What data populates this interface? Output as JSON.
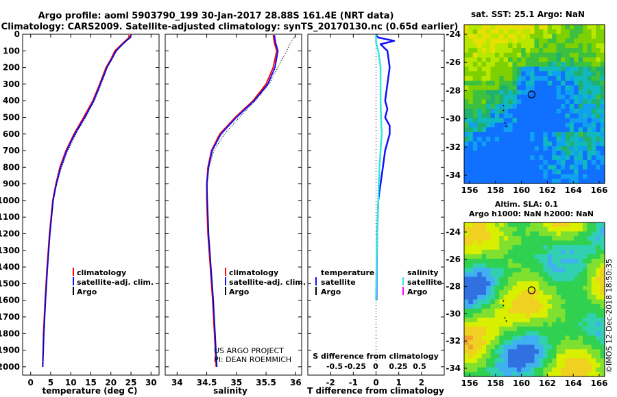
{
  "title": {
    "line1": "Argo profile: aoml 5903790_199 30-Jan-2017 28.88S 161.4E (NRT data)",
    "line2": "Climatology: CARS2009. Satellite-adjusted climatology: synTS_20170130.nc (0.65d earlier)"
  },
  "credit": {
    "project": "US ARGO PROJECT",
    "pi": "PI: DEAN ROEMMICH",
    "imos": "©IMOS 12-Dec-2018 18:50:35"
  },
  "colors": {
    "climatology": "#ff0000",
    "satellite_clim": "#1010ff",
    "argo": "#000000",
    "salinity_satellite": "#33e6e6",
    "salinity_argo": "#ff00ff"
  },
  "chart_data": [
    {
      "type": "line",
      "name": "temperature",
      "xlabel": "temperature (deg C)",
      "ylabel": "",
      "xlim": [
        -2,
        32
      ],
      "ylim": [
        0,
        2050
      ],
      "xticks": [
        0,
        5,
        10,
        15,
        20,
        25,
        30
      ],
      "yticks": [
        0,
        100,
        200,
        300,
        400,
        500,
        600,
        700,
        800,
        900,
        1000,
        1100,
        1200,
        1300,
        1400,
        1500,
        1600,
        1700,
        1800,
        1900,
        2000
      ],
      "legend": {
        "position": "bottom-right",
        "items": [
          "climatology",
          "satellite-adj. clim.",
          "Argo"
        ]
      },
      "series": [
        {
          "name": "climatology",
          "color": "#ff0000",
          "points": [
            [
              24.5,
              5
            ],
            [
              24.5,
              20
            ],
            [
              23.6,
              40
            ],
            [
              22.3,
              70
            ],
            [
              21.0,
              100
            ],
            [
              20.0,
              150
            ],
            [
              18.8,
              200
            ],
            [
              17.2,
              300
            ],
            [
              15.5,
              400
            ],
            [
              13.2,
              500
            ],
            [
              10.8,
              600
            ],
            [
              8.8,
              700
            ],
            [
              7.3,
              800
            ],
            [
              6.3,
              900
            ],
            [
              5.5,
              1000
            ],
            [
              4.7,
              1200
            ],
            [
              4.1,
              1400
            ],
            [
              3.6,
              1600
            ],
            [
              3.2,
              1800
            ],
            [
              3.0,
              2000
            ]
          ]
        },
        {
          "name": "satellite-adj. clim.",
          "color": "#1010ff",
          "points": [
            [
              25.0,
              5
            ],
            [
              24.8,
              20
            ],
            [
              23.8,
              40
            ],
            [
              22.5,
              70
            ],
            [
              21.3,
              100
            ],
            [
              20.2,
              150
            ],
            [
              19.0,
              200
            ],
            [
              17.4,
              300
            ],
            [
              15.7,
              400
            ],
            [
              13.5,
              500
            ],
            [
              11.0,
              600
            ],
            [
              9.0,
              700
            ],
            [
              7.5,
              800
            ],
            [
              6.4,
              900
            ],
            [
              5.6,
              1000
            ],
            [
              4.8,
              1200
            ],
            [
              4.2,
              1400
            ],
            [
              3.7,
              1600
            ],
            [
              3.3,
              1800
            ],
            [
              3.0,
              2000
            ]
          ]
        },
        {
          "name": "Argo",
          "color": "#000000",
          "points": [
            [
              25.1,
              5
            ],
            [
              24.9,
              20
            ],
            [
              23.9,
              40
            ],
            [
              22.6,
              70
            ],
            [
              21.4,
              100
            ],
            [
              20.3,
              150
            ],
            [
              19.1,
              200
            ],
            [
              17.6,
              300
            ],
            [
              15.9,
              400
            ],
            [
              13.7,
              500
            ],
            [
              11.3,
              600
            ],
            [
              9.3,
              700
            ],
            [
              7.7,
              800
            ],
            [
              6.5,
              900
            ],
            [
              5.6,
              1000
            ],
            [
              4.8,
              1200
            ],
            [
              4.2,
              1400
            ],
            [
              3.7,
              1600
            ],
            [
              3.3,
              1800
            ],
            [
              3.0,
              2000
            ]
          ]
        }
      ]
    },
    {
      "type": "line",
      "name": "salinity",
      "xlabel": "salinity",
      "xlim": [
        33.8,
        36.1
      ],
      "ylim": [
        0,
        2050
      ],
      "xticks": [
        34,
        34.5,
        35,
        35.5,
        36
      ],
      "legend": {
        "position": "bottom-right",
        "items": [
          "climatology",
          "satellite-adj. clim.",
          "Argo"
        ]
      },
      "series": [
        {
          "name": "climatology",
          "color": "#ff0000",
          "points": [
            [
              35.62,
              5
            ],
            [
              35.64,
              50
            ],
            [
              35.68,
              100
            ],
            [
              35.62,
              200
            ],
            [
              35.5,
              300
            ],
            [
              35.28,
              400
            ],
            [
              34.98,
              500
            ],
            [
              34.72,
              600
            ],
            [
              34.58,
              700
            ],
            [
              34.52,
              800
            ],
            [
              34.5,
              900
            ],
            [
              34.5,
              1000
            ],
            [
              34.52,
              1200
            ],
            [
              34.56,
              1400
            ],
            [
              34.6,
              1600
            ],
            [
              34.63,
              1800
            ],
            [
              34.66,
              2000
            ]
          ]
        },
        {
          "name": "satellite-adj. clim.",
          "color": "#1010ff",
          "points": [
            [
              35.64,
              5
            ],
            [
              35.66,
              50
            ],
            [
              35.7,
              100
            ],
            [
              35.65,
              200
            ],
            [
              35.53,
              300
            ],
            [
              35.3,
              400
            ],
            [
              35.0,
              500
            ],
            [
              34.74,
              600
            ],
            [
              34.59,
              700
            ],
            [
              34.53,
              800
            ],
            [
              34.5,
              900
            ],
            [
              34.51,
              1000
            ],
            [
              34.53,
              1200
            ],
            [
              34.57,
              1400
            ],
            [
              34.61,
              1600
            ],
            [
              34.64,
              1800
            ],
            [
              34.67,
              2000
            ]
          ]
        },
        {
          "name": "Argo",
          "color": "#000000",
          "points": [
            [
              36.0,
              5
            ],
            [
              35.95,
              30
            ],
            [
              35.9,
              60
            ],
            [
              35.85,
              100
            ],
            [
              35.7,
              200
            ],
            [
              35.55,
              300
            ],
            [
              35.32,
              400
            ],
            [
              35.05,
              500
            ],
            [
              34.8,
              600
            ],
            [
              34.62,
              700
            ],
            [
              34.54,
              800
            ],
            [
              34.51,
              900
            ],
            [
              34.51,
              1000
            ],
            [
              34.53,
              1200
            ],
            [
              34.57,
              1400
            ],
            [
              34.61,
              1600
            ],
            [
              34.64,
              1800
            ],
            [
              34.67,
              2000
            ]
          ]
        }
      ]
    },
    {
      "type": "line",
      "name": "difference",
      "xlabel": "T difference from climatology",
      "xlim": [
        -3,
        3
      ],
      "ylim": [
        0,
        2050
      ],
      "xticks": [
        -2,
        -1,
        0,
        1,
        2
      ],
      "xtick_labels": [
        "-2",
        "-1",
        "0",
        "1",
        "2"
      ],
      "secondary_xlabel": "S difference from climatology",
      "secondary_ticks": [
        "-0.5",
        "-0.25",
        "0",
        "0.25",
        "0.5"
      ],
      "legend": {
        "temperature_header": "temperature",
        "salinity_header": "salinity",
        "items_left": [
          "satellite",
          "Argo"
        ],
        "items_right": [
          "satellite",
          "Argo"
        ]
      },
      "series": [
        {
          "name": "temperature satellite",
          "color": "#1010ff",
          "points": [
            [
              0,
              5
            ],
            [
              0.1,
              20
            ],
            [
              0.8,
              40
            ],
            [
              0.2,
              60
            ],
            [
              0.5,
              100
            ],
            [
              0.6,
              200
            ],
            [
              0.5,
              300
            ],
            [
              0.4,
              400
            ],
            [
              0.5,
              450
            ],
            [
              0.4,
              500
            ],
            [
              0.6,
              550
            ],
            [
              0.6,
              600
            ],
            [
              0.4,
              700
            ],
            [
              0.3,
              800
            ],
            [
              0.2,
              900
            ],
            [
              0.1,
              1000
            ],
            [
              0.05,
              1200
            ],
            [
              0.03,
              1400
            ],
            [
              0.02,
              1600
            ]
          ]
        },
        {
          "name": "salinity satellite",
          "color": "#33e6e6",
          "points": [
            [
              0,
              5
            ],
            [
              0.0,
              50
            ],
            [
              0.1,
              100
            ],
            [
              0.2,
              200
            ],
            [
              0.2,
              300
            ],
            [
              0.2,
              400
            ],
            [
              0.22,
              500
            ],
            [
              0.25,
              600
            ],
            [
              0.2,
              700
            ],
            [
              0.15,
              800
            ],
            [
              0.12,
              900
            ],
            [
              0.1,
              1000
            ],
            [
              0.05,
              1200
            ],
            [
              0.02,
              1400
            ],
            [
              0.0,
              1600
            ]
          ]
        }
      ]
    }
  ],
  "maps": {
    "sst": {
      "title": "sat. SST: 25.1 Argo: NaN",
      "xticks": [
        "156",
        "158",
        "160",
        "162",
        "164",
        "166"
      ],
      "yticks": [
        "-24",
        "-26",
        "-28",
        "-30",
        "-32",
        "-34"
      ]
    },
    "sla": {
      "title_line1": "Altim. SLA: 0.1",
      "title_line2": "Argo h1000: NaN h2000: NaN",
      "xticks": [
        "156",
        "158",
        "160",
        "162",
        "164",
        "166"
      ],
      "yticks": [
        "-24",
        "-26",
        "-28",
        "-30",
        "-32",
        "-34"
      ]
    }
  }
}
